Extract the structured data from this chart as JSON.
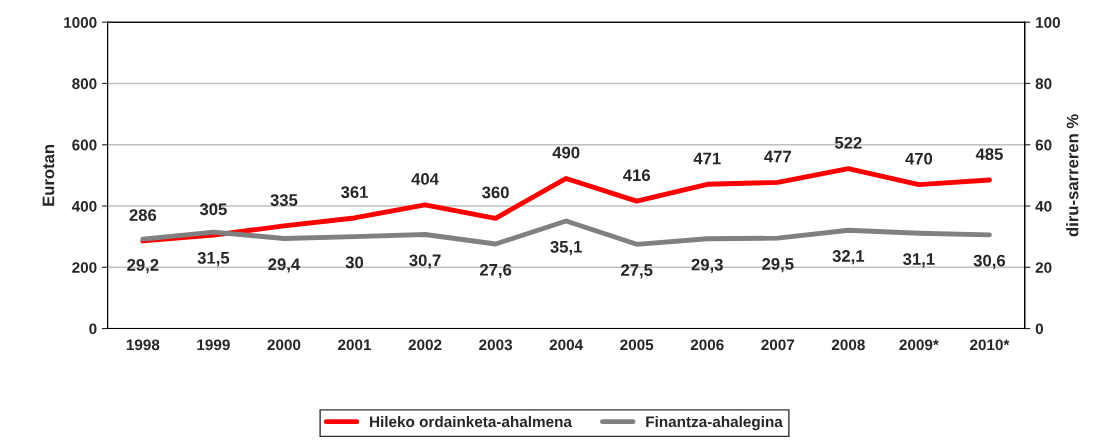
{
  "chart_data": {
    "type": "line",
    "categories": [
      "1998",
      "1999",
      "2000",
      "2001",
      "2002",
      "2003",
      "2004",
      "2005",
      "2006",
      "2007",
      "2008",
      "2009*",
      "2010*"
    ],
    "series": [
      {
        "name": "Hileko ordainketa-ahalmena",
        "color": "#ff0000",
        "values": [
          286,
          305,
          335,
          361,
          404,
          360,
          490,
          416,
          471,
          477,
          522,
          470,
          485
        ],
        "value_labels": [
          "286",
          "305",
          "335",
          "361",
          "404",
          "360",
          "490",
          "416",
          "471",
          "477",
          "522",
          "470",
          "485"
        ]
      },
      {
        "name": "Finantza-ahalegina",
        "color": "#808080",
        "axis": "y2",
        "values": [
          29.2,
          31.5,
          29.4,
          30,
          30.7,
          27.6,
          35.1,
          27.5,
          29.3,
          29.5,
          32.1,
          31.1,
          30.6
        ],
        "value_labels": [
          "29,2",
          "31,5",
          "29,4",
          "30",
          "30,7",
          "27,6",
          "35,1",
          "27,5",
          "29,3",
          "29,5",
          "32,1",
          "31,1",
          "30,6"
        ]
      }
    ],
    "ylabel": "Eurotan",
    "y2label": "diru-sarreren %",
    "ylim": [
      0,
      1000
    ],
    "yticks": [
      0,
      200,
      400,
      600,
      800,
      1000
    ],
    "y2lim": [
      0,
      100
    ],
    "y2ticks": [
      0,
      20,
      40,
      60,
      80,
      100
    ],
    "grid": "y",
    "legend": "bottom",
    "marker": "none",
    "line_style": "solid"
  }
}
